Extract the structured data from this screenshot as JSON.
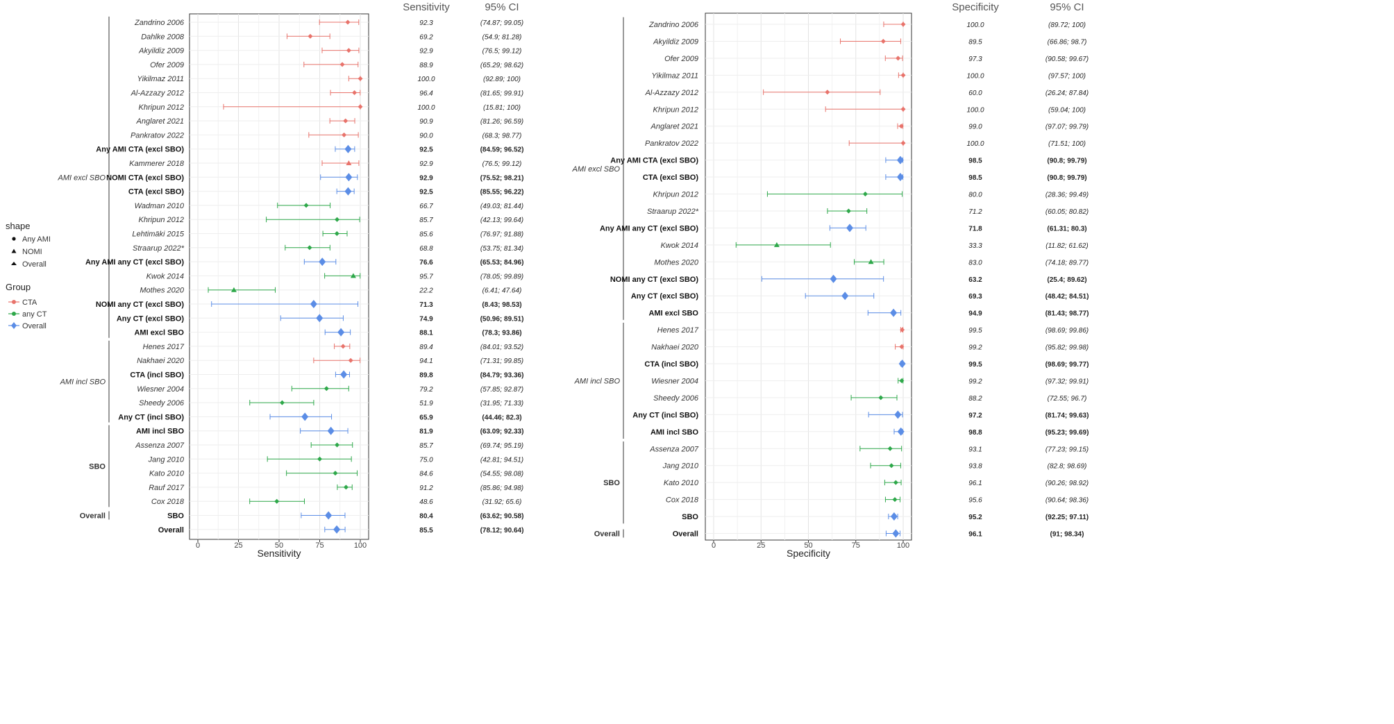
{
  "colors": {
    "CTA": "#e8736b",
    "any CT": "#2ea84a",
    "Overall": "#5b8de6"
  },
  "legend": {
    "shape_title": "shape",
    "shape_items": [
      "Any AMI",
      "NOMI",
      "Overall"
    ],
    "group_title": "Group",
    "group_items": [
      "CTA",
      "any CT",
      "Overall"
    ]
  },
  "chart_data": [
    {
      "type": "forest",
      "xlabel": "Sensitivity",
      "value_header": "Sensitivity",
      "ci_header": "95% CI",
      "xlim": [
        0,
        100
      ],
      "ticks": [
        0,
        25,
        50,
        75,
        100
      ],
      "groups": [
        {
          "name": "AMI excl SBO",
          "rows": [
            0,
            22
          ]
        },
        {
          "name": "AMI incl SBO",
          "rows": [
            23,
            28
          ]
        },
        {
          "name": "SBO",
          "rows": [
            29,
            34
          ]
        },
        {
          "name": "Overall",
          "rows": [
            35,
            35
          ]
        }
      ],
      "rows": [
        {
          "label": "Zandrino 2006",
          "value": 92.3,
          "lo": 74.87,
          "hi": 99.05,
          "ci": "(74.87; 99.05)",
          "group": "CTA",
          "shape": "Any AMI",
          "bold": false
        },
        {
          "label": "Dahlke 2008",
          "value": 69.2,
          "lo": 54.9,
          "hi": 81.28,
          "ci": "(54.9; 81.28)",
          "group": "CTA",
          "shape": "Any AMI",
          "bold": false
        },
        {
          "label": "Akyildiz 2009",
          "value": 92.9,
          "lo": 76.5,
          "hi": 99.12,
          "ci": "(76.5; 99.12)",
          "group": "CTA",
          "shape": "Any AMI",
          "bold": false
        },
        {
          "label": "Ofer 2009",
          "value": 88.9,
          "lo": 65.29,
          "hi": 98.62,
          "ci": "(65.29; 98.62)",
          "group": "CTA",
          "shape": "Any AMI",
          "bold": false
        },
        {
          "label": "Yikilmaz 2011",
          "value": 100.0,
          "lo": 92.89,
          "hi": 100,
          "ci": "(92.89; 100)",
          "group": "CTA",
          "shape": "Any AMI",
          "bold": false
        },
        {
          "label": "Al-Azzazy 2012",
          "value": 96.4,
          "lo": 81.65,
          "hi": 99.91,
          "ci": "(81.65; 99.91)",
          "group": "CTA",
          "shape": "Any AMI",
          "bold": false
        },
        {
          "label": "Khripun 2012",
          "value": 100.0,
          "lo": 15.81,
          "hi": 100,
          "ci": "(15.81; 100)",
          "group": "CTA",
          "shape": "Any AMI",
          "bold": false
        },
        {
          "label": "Anglaret 2021",
          "value": 90.9,
          "lo": 81.26,
          "hi": 96.59,
          "ci": "(81.26; 96.59)",
          "group": "CTA",
          "shape": "Any AMI",
          "bold": false
        },
        {
          "label": "Pankratov 2022",
          "value": 90.0,
          "lo": 68.3,
          "hi": 98.77,
          "ci": "(68.3; 98.77)",
          "group": "CTA",
          "shape": "Any AMI",
          "bold": false
        },
        {
          "label": "Any AMI CTA (excl SBO)",
          "value": 92.5,
          "lo": 84.59,
          "hi": 96.52,
          "ci": "(84.59; 96.52)",
          "group": "Overall",
          "shape": "Overall",
          "bold": true
        },
        {
          "label": "Kammerer 2018",
          "value": 92.9,
          "lo": 76.5,
          "hi": 99.12,
          "ci": "(76.5; 99.12)",
          "group": "CTA",
          "shape": "NOMI",
          "bold": false
        },
        {
          "label": "NOMI CTA (excl SBO)",
          "value": 92.9,
          "lo": 75.52,
          "hi": 98.21,
          "ci": "(75.52; 98.21)",
          "group": "Overall",
          "shape": "Overall",
          "bold": true
        },
        {
          "label": "CTA (excl SBO)",
          "value": 92.5,
          "lo": 85.55,
          "hi": 96.22,
          "ci": "(85.55; 96.22)",
          "group": "Overall",
          "shape": "Overall",
          "bold": true
        },
        {
          "label": "Wadman 2010",
          "value": 66.7,
          "lo": 49.03,
          "hi": 81.44,
          "ci": "(49.03; 81.44)",
          "group": "any CT",
          "shape": "Any AMI",
          "bold": false
        },
        {
          "label": "Khripun 2012",
          "value": 85.7,
          "lo": 42.13,
          "hi": 99.64,
          "ci": "(42.13; 99.64)",
          "group": "any CT",
          "shape": "Any AMI",
          "bold": false
        },
        {
          "label": "Lehtimäki 2015",
          "value": 85.6,
          "lo": 76.97,
          "hi": 91.88,
          "ci": "(76.97; 91.88)",
          "group": "any CT",
          "shape": "Any AMI",
          "bold": false
        },
        {
          "label": "Straarup 2022*",
          "value": 68.8,
          "lo": 53.75,
          "hi": 81.34,
          "ci": "(53.75; 81.34)",
          "group": "any CT",
          "shape": "Any AMI",
          "bold": false
        },
        {
          "label": "Any AMI any CT (excl SBO)",
          "value": 76.6,
          "lo": 65.53,
          "hi": 84.96,
          "ci": "(65.53; 84.96)",
          "group": "Overall",
          "shape": "Overall",
          "bold": true
        },
        {
          "label": "Kwok 2014",
          "value": 95.7,
          "lo": 78.05,
          "hi": 99.89,
          "ci": "(78.05; 99.89)",
          "group": "any CT",
          "shape": "NOMI",
          "bold": false
        },
        {
          "label": "Mothes 2020",
          "value": 22.2,
          "lo": 6.41,
          "hi": 47.64,
          "ci": "(6.41; 47.64)",
          "group": "any CT",
          "shape": "NOMI",
          "bold": false
        },
        {
          "label": "NOMI any CT (excl SBO)",
          "value": 71.3,
          "lo": 8.43,
          "hi": 98.53,
          "ci": "(8.43; 98.53)",
          "group": "Overall",
          "shape": "Overall",
          "bold": true
        },
        {
          "label": "Any CT (excl SBO)",
          "value": 74.9,
          "lo": 50.96,
          "hi": 89.51,
          "ci": "(50.96; 89.51)",
          "group": "Overall",
          "shape": "Overall",
          "bold": true
        },
        {
          "label": "AMI excl SBO",
          "value": 88.1,
          "lo": 78.3,
          "hi": 93.86,
          "ci": "(78.3; 93.86)",
          "group": "Overall",
          "shape": "Overall",
          "bold": true
        },
        {
          "label": "Henes 2017",
          "value": 89.4,
          "lo": 84.01,
          "hi": 93.52,
          "ci": "(84.01; 93.52)",
          "group": "CTA",
          "shape": "Any AMI",
          "bold": false
        },
        {
          "label": "Nakhaei 2020",
          "value": 94.1,
          "lo": 71.31,
          "hi": 99.85,
          "ci": "(71.31; 99.85)",
          "group": "CTA",
          "shape": "Any AMI",
          "bold": false
        },
        {
          "label": "CTA (incl SBO)",
          "value": 89.8,
          "lo": 84.79,
          "hi": 93.36,
          "ci": "(84.79; 93.36)",
          "group": "Overall",
          "shape": "Overall",
          "bold": true
        },
        {
          "label": "Wiesner 2004",
          "value": 79.2,
          "lo": 57.85,
          "hi": 92.87,
          "ci": "(57.85; 92.87)",
          "group": "any CT",
          "shape": "Any AMI",
          "bold": false
        },
        {
          "label": "Sheedy 2006",
          "value": 51.9,
          "lo": 31.95,
          "hi": 71.33,
          "ci": "(31.95; 71.33)",
          "group": "any CT",
          "shape": "Any AMI",
          "bold": false
        },
        {
          "label": "Any CT (incl SBO)",
          "value": 65.9,
          "lo": 44.46,
          "hi": 82.3,
          "ci": "(44.46; 82.3)",
          "group": "Overall",
          "shape": "Overall",
          "bold": true
        },
        {
          "label": "AMI incl SBO",
          "value": 81.9,
          "lo": 63.09,
          "hi": 92.33,
          "ci": "(63.09; 92.33)",
          "group": "Overall",
          "shape": "Overall",
          "bold": true
        },
        {
          "label": "Assenza 2007",
          "value": 85.7,
          "lo": 69.74,
          "hi": 95.19,
          "ci": "(69.74; 95.19)",
          "group": "any CT",
          "shape": "Any AMI",
          "bold": false
        },
        {
          "label": "Jang 2010",
          "value": 75.0,
          "lo": 42.81,
          "hi": 94.51,
          "ci": "(42.81; 94.51)",
          "group": "any CT",
          "shape": "Any AMI",
          "bold": false
        },
        {
          "label": "Kato 2010",
          "value": 84.6,
          "lo": 54.55,
          "hi": 98.08,
          "ci": "(54.55; 98.08)",
          "group": "any CT",
          "shape": "Any AMI",
          "bold": false
        },
        {
          "label": "Rauf 2017",
          "value": 91.2,
          "lo": 85.86,
          "hi": 94.98,
          "ci": "(85.86; 94.98)",
          "group": "any CT",
          "shape": "Any AMI",
          "bold": false
        },
        {
          "label": "Cox 2018",
          "value": 48.6,
          "lo": 31.92,
          "hi": 65.6,
          "ci": "(31.92; 65.6)",
          "group": "any CT",
          "shape": "Any AMI",
          "bold": false
        },
        {
          "label": "SBO",
          "value": 80.4,
          "lo": 63.62,
          "hi": 90.58,
          "ci": "(63.62; 90.58)",
          "group": "Overall",
          "shape": "Overall",
          "bold": true
        },
        {
          "label": "Overall",
          "value": 85.5,
          "lo": 78.12,
          "hi": 90.64,
          "ci": "(78.12; 90.64)",
          "group": "Overall",
          "shape": "Overall",
          "bold": true
        }
      ]
    },
    {
      "type": "forest",
      "xlabel": "Specificity",
      "value_header": "Specificity",
      "ci_header": "95% CI",
      "xlim": [
        0,
        100
      ],
      "ticks": [
        0,
        25,
        50,
        75,
        100
      ],
      "groups": [
        {
          "name": "AMI excl SBO",
          "rows": [
            0,
            17
          ]
        },
        {
          "name": "AMI incl SBO",
          "rows": [
            18,
            24
          ]
        },
        {
          "name": "SBO",
          "rows": [
            25,
            29
          ]
        },
        {
          "name": "Overall",
          "rows": [
            30,
            30
          ]
        }
      ],
      "rows": [
        {
          "label": "Zandrino 2006",
          "value": 100.0,
          "lo": 89.72,
          "hi": 100,
          "ci": "(89.72; 100)",
          "group": "CTA",
          "shape": "Any AMI",
          "bold": false
        },
        {
          "label": "Akyildiz 2009",
          "value": 89.5,
          "lo": 66.86,
          "hi": 98.7,
          "ci": "(66.86; 98.7)",
          "group": "CTA",
          "shape": "Any AMI",
          "bold": false
        },
        {
          "label": "Ofer 2009",
          "value": 97.3,
          "lo": 90.58,
          "hi": 99.67,
          "ci": "(90.58; 99.67)",
          "group": "CTA",
          "shape": "Any AMI",
          "bold": false
        },
        {
          "label": "Yikilmaz 2011",
          "value": 100.0,
          "lo": 97.57,
          "hi": 100,
          "ci": "(97.57; 100)",
          "group": "CTA",
          "shape": "Any AMI",
          "bold": false
        },
        {
          "label": "Al-Azzazy 2012",
          "value": 60.0,
          "lo": 26.24,
          "hi": 87.84,
          "ci": "(26.24; 87.84)",
          "group": "CTA",
          "shape": "Any AMI",
          "bold": false
        },
        {
          "label": "Khripun 2012",
          "value": 100.0,
          "lo": 59.04,
          "hi": 100,
          "ci": "(59.04; 100)",
          "group": "CTA",
          "shape": "Any AMI",
          "bold": false
        },
        {
          "label": "Anglaret 2021",
          "value": 99.0,
          "lo": 97.07,
          "hi": 99.79,
          "ci": "(97.07; 99.79)",
          "group": "CTA",
          "shape": "Any AMI",
          "bold": false
        },
        {
          "label": "Pankratov 2022",
          "value": 100.0,
          "lo": 71.51,
          "hi": 100,
          "ci": "(71.51; 100)",
          "group": "CTA",
          "shape": "Any AMI",
          "bold": false
        },
        {
          "label": "Any AMI CTA (excl SBO)",
          "value": 98.5,
          "lo": 90.8,
          "hi": 99.79,
          "ci": "(90.8; 99.79)",
          "group": "Overall",
          "shape": "Overall",
          "bold": true
        },
        {
          "label": "CTA (excl SBO)",
          "value": 98.5,
          "lo": 90.8,
          "hi": 99.79,
          "ci": "(90.8; 99.79)",
          "group": "Overall",
          "shape": "Overall",
          "bold": true
        },
        {
          "label": "Khripun 2012",
          "value": 80.0,
          "lo": 28.36,
          "hi": 99.49,
          "ci": "(28.36; 99.49)",
          "group": "any CT",
          "shape": "Any AMI",
          "bold": false
        },
        {
          "label": "Straarup 2022*",
          "value": 71.2,
          "lo": 60.05,
          "hi": 80.82,
          "ci": "(60.05; 80.82)",
          "group": "any CT",
          "shape": "Any AMI",
          "bold": false
        },
        {
          "label": "Any AMI any CT (excl SBO)",
          "value": 71.8,
          "lo": 61.31,
          "hi": 80.3,
          "ci": "(61.31; 80.3)",
          "group": "Overall",
          "shape": "Overall",
          "bold": true
        },
        {
          "label": "Kwok 2014",
          "value": 33.3,
          "lo": 11.82,
          "hi": 61.62,
          "ci": "(11.82; 61.62)",
          "group": "any CT",
          "shape": "NOMI",
          "bold": false
        },
        {
          "label": "Mothes 2020",
          "value": 83.0,
          "lo": 74.18,
          "hi": 89.77,
          "ci": "(74.18; 89.77)",
          "group": "any CT",
          "shape": "NOMI",
          "bold": false
        },
        {
          "label": "NOMI any CT (excl SBO)",
          "value": 63.2,
          "lo": 25.4,
          "hi": 89.62,
          "ci": "(25.4; 89.62)",
          "group": "Overall",
          "shape": "Overall",
          "bold": true
        },
        {
          "label": "Any CT (excl SBO)",
          "value": 69.3,
          "lo": 48.42,
          "hi": 84.51,
          "ci": "(48.42; 84.51)",
          "group": "Overall",
          "shape": "Overall",
          "bold": true
        },
        {
          "label": "AMI excl SBO",
          "value": 94.9,
          "lo": 81.43,
          "hi": 98.77,
          "ci": "(81.43; 98.77)",
          "group": "Overall",
          "shape": "Overall",
          "bold": true
        },
        {
          "label": "Henes 2017",
          "value": 99.5,
          "lo": 98.69,
          "hi": 99.86,
          "ci": "(98.69; 99.86)",
          "group": "CTA",
          "shape": "Any AMI",
          "bold": false
        },
        {
          "label": "Nakhaei 2020",
          "value": 99.2,
          "lo": 95.82,
          "hi": 99.98,
          "ci": "(95.82; 99.98)",
          "group": "CTA",
          "shape": "Any AMI",
          "bold": false
        },
        {
          "label": "CTA (incl SBO)",
          "value": 99.5,
          "lo": 98.69,
          "hi": 99.77,
          "ci": "(98.69; 99.77)",
          "group": "Overall",
          "shape": "Overall",
          "bold": true
        },
        {
          "label": "Wiesner 2004",
          "value": 99.2,
          "lo": 97.32,
          "hi": 99.91,
          "ci": "(97.32; 99.91)",
          "group": "any CT",
          "shape": "Any AMI",
          "bold": false
        },
        {
          "label": "Sheedy 2006",
          "value": 88.2,
          "lo": 72.55,
          "hi": 96.7,
          "ci": "(72.55; 96.7)",
          "group": "any CT",
          "shape": "Any AMI",
          "bold": false
        },
        {
          "label": "Any CT (incl SBO)",
          "value": 97.2,
          "lo": 81.74,
          "hi": 99.63,
          "ci": "(81.74; 99.63)",
          "group": "Overall",
          "shape": "Overall",
          "bold": true
        },
        {
          "label": "AMI incl SBO",
          "value": 98.8,
          "lo": 95.23,
          "hi": 99.69,
          "ci": "(95.23; 99.69)",
          "group": "Overall",
          "shape": "Overall",
          "bold": true
        },
        {
          "label": "Assenza 2007",
          "value": 93.1,
          "lo": 77.23,
          "hi": 99.15,
          "ci": "(77.23; 99.15)",
          "group": "any CT",
          "shape": "Any AMI",
          "bold": false
        },
        {
          "label": "Jang 2010",
          "value": 93.8,
          "lo": 82.8,
          "hi": 98.69,
          "ci": "(82.8; 98.69)",
          "group": "any CT",
          "shape": "Any AMI",
          "bold": false
        },
        {
          "label": "Kato 2010",
          "value": 96.1,
          "lo": 90.26,
          "hi": 98.92,
          "ci": "(90.26; 98.92)",
          "group": "any CT",
          "shape": "Any AMI",
          "bold": false
        },
        {
          "label": "Cox 2018",
          "value": 95.6,
          "lo": 90.64,
          "hi": 98.36,
          "ci": "(90.64; 98.36)",
          "group": "any CT",
          "shape": "Any AMI",
          "bold": false
        },
        {
          "label": "SBO",
          "value": 95.2,
          "lo": 92.25,
          "hi": 97.11,
          "ci": "(92.25; 97.11)",
          "group": "Overall",
          "shape": "Overall",
          "bold": true
        },
        {
          "label": "Overall",
          "value": 96.1,
          "lo": 91,
          "hi": 98.34,
          "ci": "(91; 98.34)",
          "group": "Overall",
          "shape": "Overall",
          "bold": true
        }
      ]
    }
  ]
}
